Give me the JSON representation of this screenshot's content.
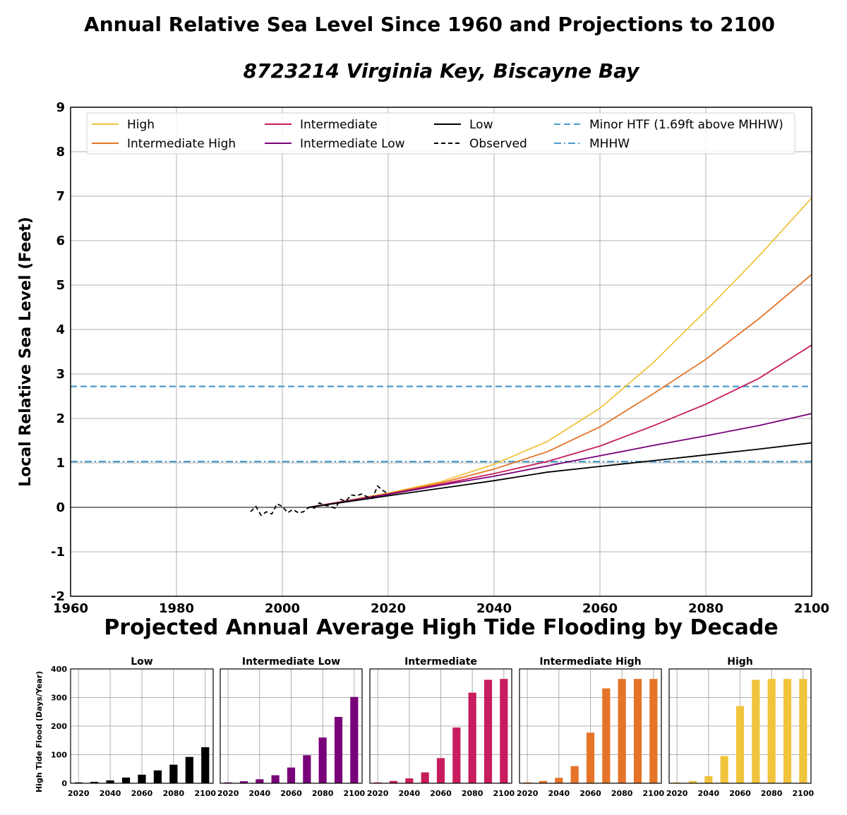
{
  "title": "Annual Relative Sea Level Since 1960 and Projections to 2100",
  "subtitle": "8723214 Virginia Key, Biscayne Bay",
  "section_title": "Projected Annual Average High Tide Flooding by Decade",
  "colors": {
    "high": "#f0c43c",
    "intermediate_high": "#e57428",
    "intermediate": "#c81c5c",
    "intermediate_low": "#780078",
    "low": "#000000",
    "observed": "#000000",
    "minor_htf": "#4a9cc8",
    "mhhw": "#4a9cc8",
    "grid": "#b0b0b0",
    "zero_line": "#808080"
  },
  "chart_data": [
    {
      "type": "line",
      "ylabel": "Local Relative Sea Level (Feet)",
      "xlim": [
        1960,
        2100
      ],
      "ylim": [
        -2,
        9
      ],
      "x_ticks": [
        "1960",
        "1980",
        "2000",
        "2020",
        "2040",
        "2060",
        "2080",
        "2100"
      ],
      "y_ticks": [
        "-2",
        "-1",
        "0",
        "1",
        "2",
        "3",
        "4",
        "5",
        "6",
        "7",
        "8",
        "9"
      ],
      "grid": true,
      "legend_placement": "top",
      "legend": [
        {
          "label": "High",
          "key": "high",
          "style": "solid"
        },
        {
          "label": "Intermediate High",
          "key": "intermediate_high",
          "style": "solid"
        },
        {
          "label": "Intermediate",
          "key": "intermediate",
          "style": "solid"
        },
        {
          "label": "Intermediate Low",
          "key": "intermediate_low",
          "style": "solid"
        },
        {
          "label": "Low",
          "key": "low",
          "style": "solid"
        },
        {
          "label": "Observed",
          "key": "observed",
          "style": "dashed"
        },
        {
          "label": "Minor HTF (1.69ft above MHHW)",
          "key": "minor_htf",
          "style": "dashed"
        },
        {
          "label": "MHHW",
          "key": "mhhw",
          "style": "dashdot"
        }
      ],
      "series": [
        {
          "name": "High",
          "key": "high",
          "x": [
            2005,
            2020,
            2030,
            2040,
            2050,
            2060,
            2070,
            2080,
            2090,
            2100
          ],
          "y": [
            0,
            0.32,
            0.58,
            0.97,
            1.48,
            2.23,
            3.25,
            4.42,
            5.65,
            6.96
          ]
        },
        {
          "name": "Intermediate High",
          "key": "intermediate_high",
          "x": [
            2005,
            2020,
            2030,
            2040,
            2050,
            2060,
            2070,
            2080,
            2090,
            2100
          ],
          "y": [
            0,
            0.31,
            0.55,
            0.86,
            1.25,
            1.81,
            2.55,
            3.33,
            4.24,
            5.24
          ]
        },
        {
          "name": "Intermediate",
          "key": "intermediate",
          "x": [
            2005,
            2020,
            2030,
            2040,
            2050,
            2060,
            2070,
            2080,
            2090,
            2100
          ],
          "y": [
            0,
            0.3,
            0.52,
            0.76,
            1.03,
            1.38,
            1.83,
            2.32,
            2.9,
            3.65
          ]
        },
        {
          "name": "Intermediate Low",
          "key": "intermediate_low",
          "x": [
            2005,
            2020,
            2030,
            2040,
            2050,
            2060,
            2070,
            2080,
            2090,
            2100
          ],
          "y": [
            0,
            0.29,
            0.5,
            0.7,
            0.93,
            1.16,
            1.39,
            1.61,
            1.84,
            2.11
          ]
        },
        {
          "name": "Low",
          "key": "low",
          "x": [
            2005,
            2020,
            2030,
            2040,
            2050,
            2060,
            2070,
            2080,
            2090,
            2100
          ],
          "y": [
            0,
            0.26,
            0.43,
            0.6,
            0.79,
            0.92,
            1.05,
            1.18,
            1.31,
            1.45
          ]
        },
        {
          "name": "Observed",
          "key": "observed",
          "x": [
            1994,
            1995,
            1996,
            1997,
            1998,
            1999,
            2000,
            2001,
            2002,
            2003,
            2004,
            2005,
            2006,
            2007,
            2008,
            2009,
            2010,
            2011,
            2012,
            2013,
            2014,
            2015,
            2016,
            2017,
            2018,
            2019,
            2020
          ],
          "y": [
            -0.1,
            0.02,
            -0.18,
            -0.1,
            -0.15,
            0.08,
            0.02,
            -0.12,
            -0.05,
            -0.12,
            -0.1,
            0.0,
            -0.02,
            0.1,
            0.05,
            0.02,
            -0.02,
            0.18,
            0.14,
            0.28,
            0.26,
            0.3,
            0.24,
            0.2,
            0.48,
            0.38,
            0.3
          ]
        }
      ],
      "reference_lines": [
        {
          "name": "Minor HTF (1.69ft above MHHW)",
          "key": "minor_htf",
          "y": 2.72,
          "style": "dashed"
        },
        {
          "name": "MHHW",
          "key": "mhhw",
          "y": 1.03,
          "style": "dashdot"
        }
      ]
    },
    {
      "type": "bar",
      "title": "Low",
      "key": "low",
      "ylabel": "High Tide Flood (Days/Year)",
      "ylim": [
        0,
        400
      ],
      "y_ticks": [
        "0",
        "100",
        "200",
        "300",
        "400"
      ],
      "x_ticks": [
        "2020",
        "2040",
        "2060",
        "2080",
        "2100"
      ],
      "grid": true,
      "categories": [
        2020,
        2030,
        2040,
        2050,
        2060,
        2070,
        2080,
        2090,
        2100
      ],
      "values": [
        3,
        5,
        10,
        20,
        30,
        45,
        65,
        92,
        126
      ]
    },
    {
      "type": "bar",
      "title": "Intermediate Low",
      "key": "intermediate_low",
      "ylim": [
        0,
        400
      ],
      "x_ticks": [
        "2020",
        "2040",
        "2060",
        "2080",
        "2100"
      ],
      "grid": true,
      "categories": [
        2020,
        2030,
        2040,
        2050,
        2060,
        2070,
        2080,
        2090,
        2100
      ],
      "values": [
        3,
        7,
        14,
        28,
        55,
        98,
        160,
        232,
        302
      ]
    },
    {
      "type": "bar",
      "title": "Intermediate",
      "key": "intermediate",
      "ylim": [
        0,
        400
      ],
      "x_ticks": [
        "2020",
        "2040",
        "2060",
        "2080",
        "2100"
      ],
      "grid": true,
      "categories": [
        2020,
        2030,
        2040,
        2050,
        2060,
        2070,
        2080,
        2090,
        2100
      ],
      "values": [
        3,
        8,
        17,
        38,
        88,
        195,
        317,
        362,
        365
      ]
    },
    {
      "type": "bar",
      "title": "Intermediate High",
      "key": "intermediate_high",
      "ylim": [
        0,
        400
      ],
      "x_ticks": [
        "2020",
        "2040",
        "2060",
        "2080",
        "2100"
      ],
      "grid": true,
      "categories": [
        2020,
        2030,
        2040,
        2050,
        2060,
        2070,
        2080,
        2090,
        2100
      ],
      "values": [
        3,
        8,
        19,
        60,
        177,
        332,
        365,
        365,
        365
      ]
    },
    {
      "type": "bar",
      "title": "High",
      "key": "high",
      "ylim": [
        0,
        400
      ],
      "x_ticks": [
        "2020",
        "2040",
        "2060",
        "2080",
        "2100"
      ],
      "grid": true,
      "categories": [
        2020,
        2030,
        2040,
        2050,
        2060,
        2070,
        2080,
        2090,
        2100
      ],
      "values": [
        3,
        8,
        25,
        95,
        270,
        362,
        365,
        365,
        365
      ]
    }
  ]
}
